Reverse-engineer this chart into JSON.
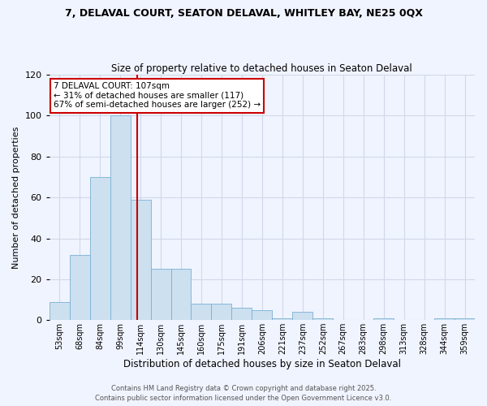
{
  "title1": "7, DELAVAL COURT, SEATON DELAVAL, WHITLEY BAY, NE25 0QX",
  "title2": "Size of property relative to detached houses in Seaton Delaval",
  "xlabel": "Distribution of detached houses by size in Seaton Delaval",
  "ylabel": "Number of detached properties",
  "categories": [
    "53sqm",
    "68sqm",
    "84sqm",
    "99sqm",
    "114sqm",
    "130sqm",
    "145sqm",
    "160sqm",
    "175sqm",
    "191sqm",
    "206sqm",
    "221sqm",
    "237sqm",
    "252sqm",
    "267sqm",
    "283sqm",
    "298sqm",
    "313sqm",
    "328sqm",
    "344sqm",
    "359sqm"
  ],
  "values": [
    9,
    32,
    70,
    100,
    59,
    25,
    25,
    8,
    8,
    6,
    5,
    1,
    4,
    1,
    0,
    0,
    1,
    0,
    0,
    1,
    1
  ],
  "bar_color": "#cce0f0",
  "bar_edge_color": "#7ab0d4",
  "vline_color": "#cc0000",
  "vline_pos": 3.82,
  "annotation_text": "7 DELAVAL COURT: 107sqm\n← 31% of detached houses are smaller (117)\n67% of semi-detached houses are larger (252) →",
  "annotation_box_color": "#cc0000",
  "ylim": [
    0,
    120
  ],
  "yticks": [
    0,
    20,
    40,
    60,
    80,
    100,
    120
  ],
  "footer1": "Contains HM Land Registry data © Crown copyright and database right 2025.",
  "footer2": "Contains public sector information licensed under the Open Government Licence v3.0.",
  "bg_color": "#f0f4ff",
  "grid_color": "#d0d8e8"
}
